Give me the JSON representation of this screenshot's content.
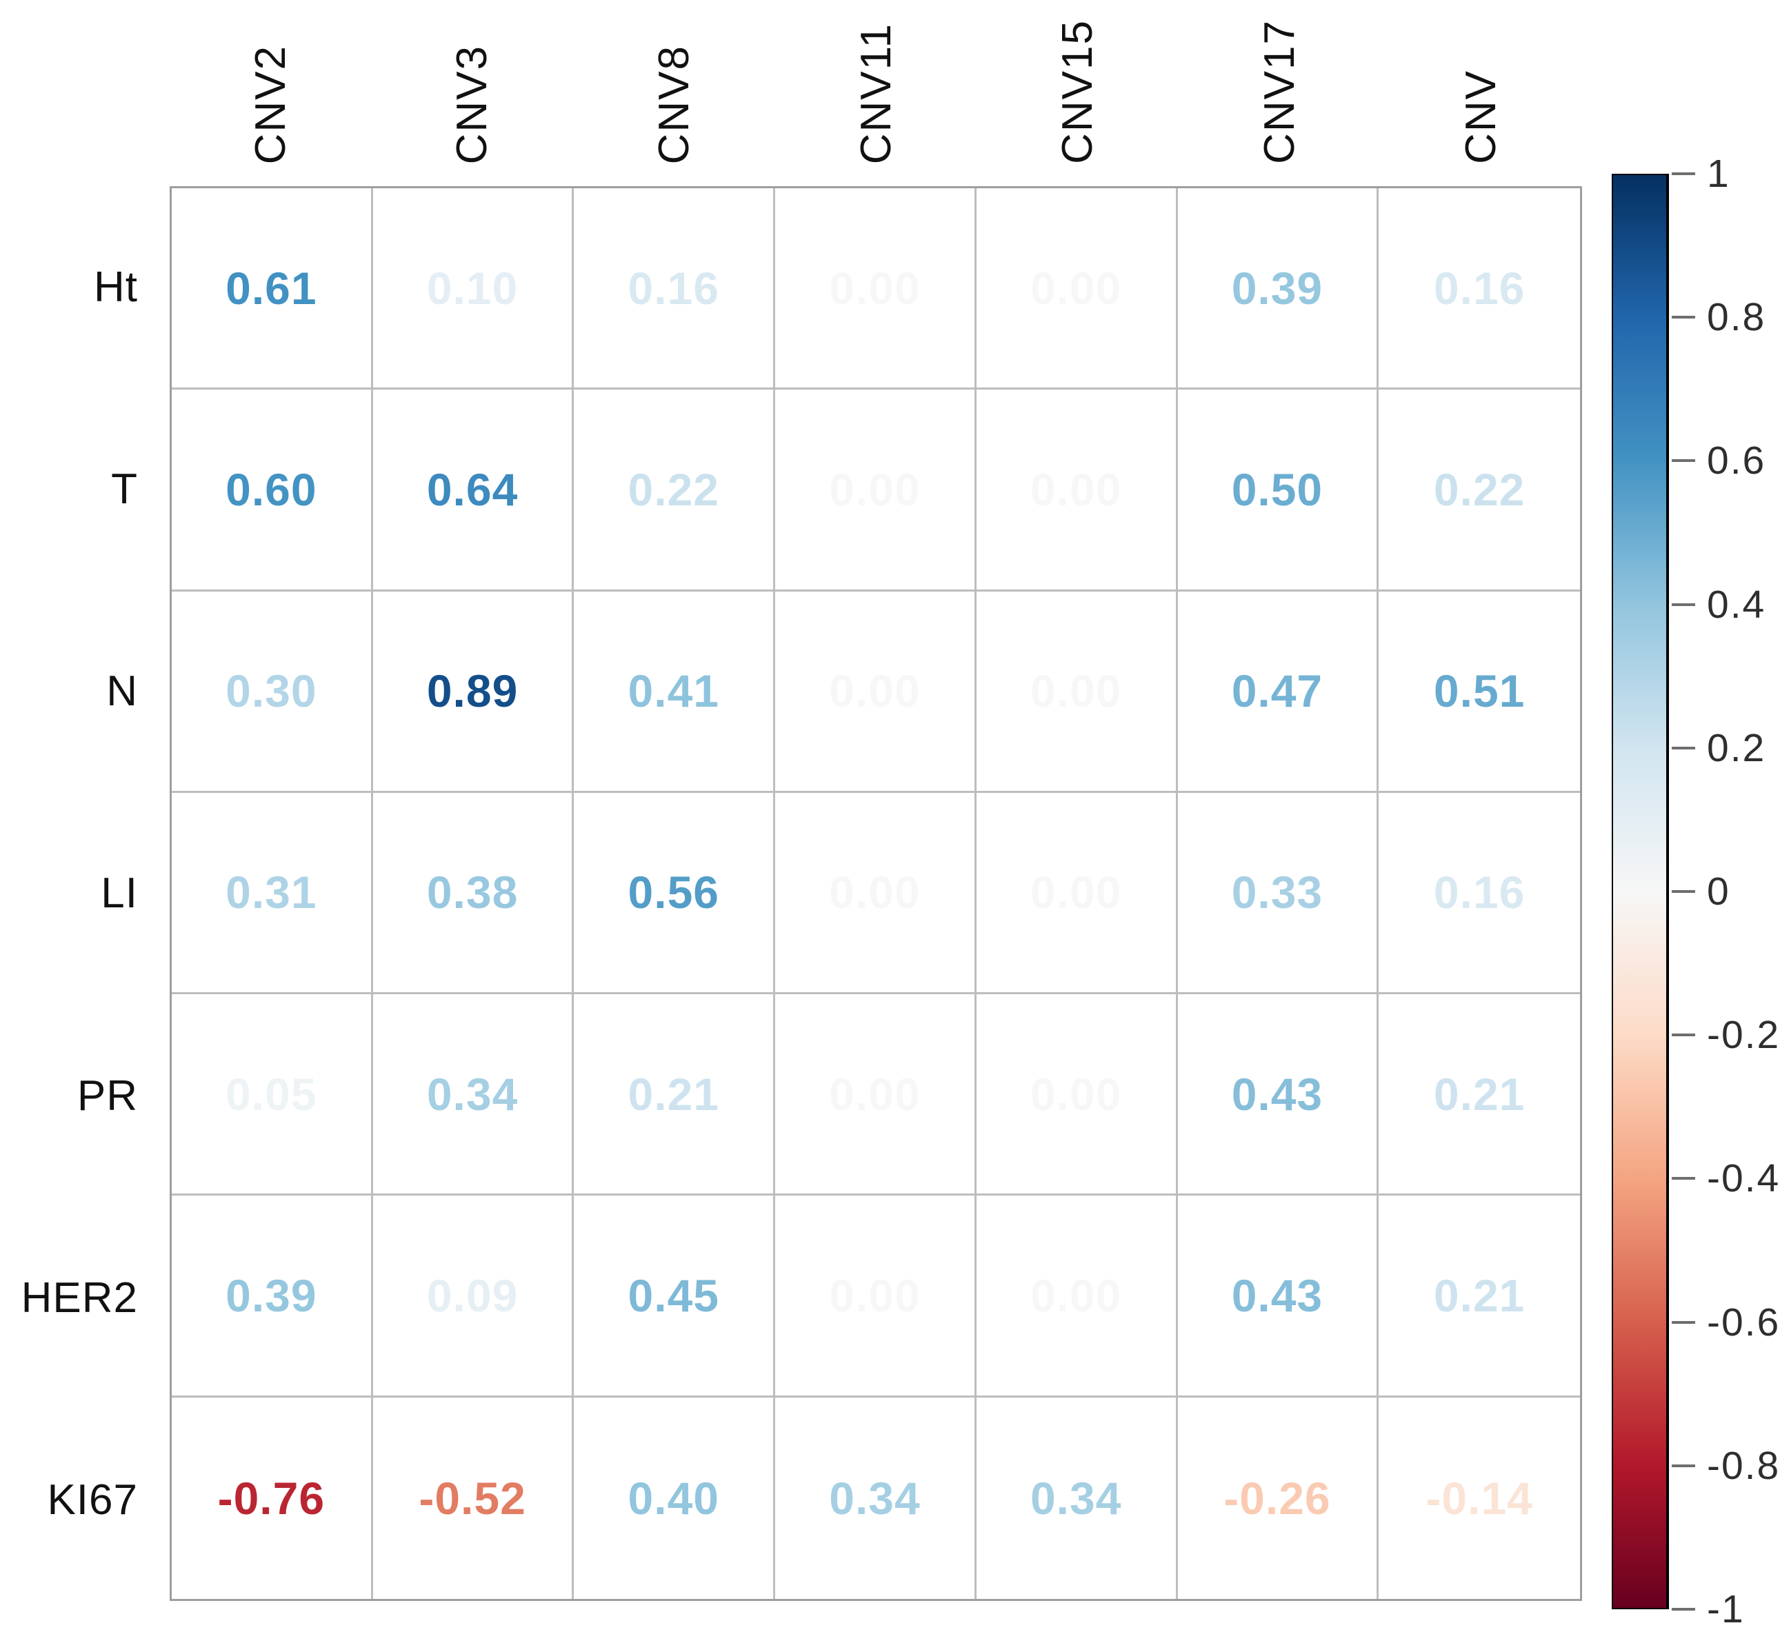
{
  "chart_data": {
    "type": "heatmap",
    "title": "",
    "description": "Correlation matrix (numbers colored by RdBu colormap) between clinical variables and CNV features",
    "columns": [
      "CNV2",
      "CNV3",
      "CNV8",
      "CNV11",
      "CNV15",
      "CNV17",
      "CNV"
    ],
    "rows": [
      "Ht",
      "T",
      "N",
      "LI",
      "PR",
      "HER2",
      "KI67"
    ],
    "values": [
      [
        0.61,
        0.1,
        0.16,
        0.0,
        0.0,
        0.39,
        0.16
      ],
      [
        0.6,
        0.64,
        0.22,
        0.0,
        0.0,
        0.5,
        0.22
      ],
      [
        0.3,
        0.89,
        0.41,
        0.0,
        0.0,
        0.47,
        0.51
      ],
      [
        0.31,
        0.38,
        0.56,
        0.0,
        0.0,
        0.33,
        0.16
      ],
      [
        0.05,
        0.34,
        0.21,
        0.0,
        0.0,
        0.43,
        0.21
      ],
      [
        0.39,
        0.09,
        0.45,
        0.0,
        0.0,
        0.43,
        0.21
      ],
      [
        -0.76,
        -0.52,
        0.4,
        0.34,
        0.34,
        -0.26,
        -0.14
      ]
    ],
    "value_decimals": 2,
    "grid": true,
    "legend_position": "right",
    "colorbar": {
      "min": -1,
      "max": 1,
      "ticks": [
        "1",
        "0.8",
        "0.6",
        "0.4",
        "0.2",
        "0",
        "-0.2",
        "-0.4",
        "-0.6",
        "-0.8",
        "-1"
      ],
      "tick_values": [
        1,
        0.8,
        0.6,
        0.4,
        0.2,
        0,
        -0.2,
        -0.4,
        -0.6,
        -0.8,
        -1
      ],
      "colormap_name": "RdBu",
      "colormap_stops": [
        "#67001F",
        "#B2182B",
        "#D6604D",
        "#F4A582",
        "#FDDBC7",
        "#F7F7F7",
        "#D1E5F0",
        "#92C5DE",
        "#4393C3",
        "#2166AC",
        "#053061"
      ]
    }
  },
  "colors": {
    "background": "#ffffff",
    "outer_border": "#9e9e9e",
    "grid_line": "#bdbdbd",
    "label_text": "#111111",
    "tick_text": "#2e2e2e",
    "colorbar_frame": "#000000"
  }
}
